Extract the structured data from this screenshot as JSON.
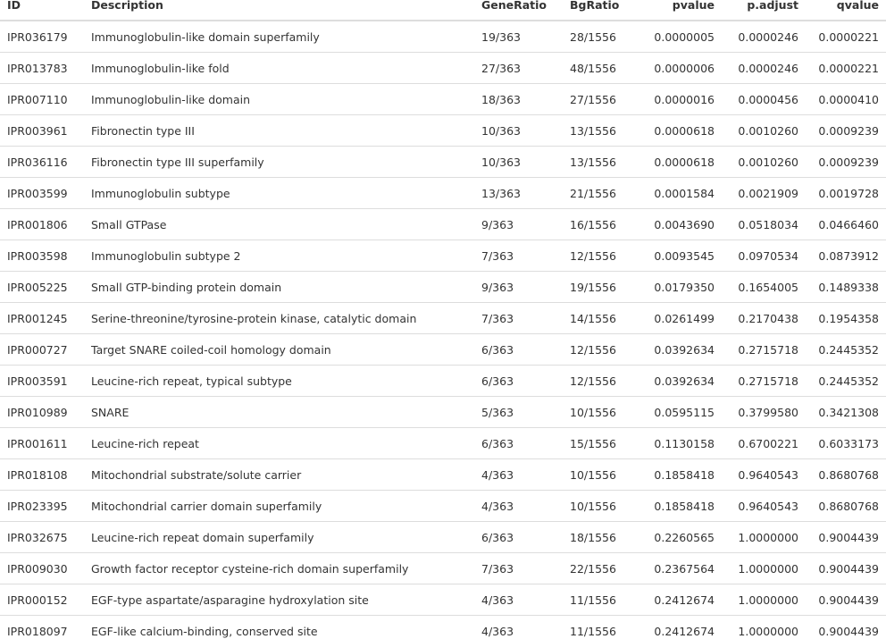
{
  "table": {
    "columns": [
      "ID",
      "Description",
      "GeneRatio",
      "BgRatio",
      "pvalue",
      "p.adjust",
      "qvalue"
    ],
    "rows": [
      [
        "IPR036179",
        "Immunoglobulin-like domain superfamily",
        "19/363",
        "28/1556",
        "0.0000005",
        "0.0000246",
        "0.0000221"
      ],
      [
        "IPR013783",
        "Immunoglobulin-like fold",
        "27/363",
        "48/1556",
        "0.0000006",
        "0.0000246",
        "0.0000221"
      ],
      [
        "IPR007110",
        "Immunoglobulin-like domain",
        "18/363",
        "27/1556",
        "0.0000016",
        "0.0000456",
        "0.0000410"
      ],
      [
        "IPR003961",
        "Fibronectin type III",
        "10/363",
        "13/1556",
        "0.0000618",
        "0.0010260",
        "0.0009239"
      ],
      [
        "IPR036116",
        "Fibronectin type III superfamily",
        "10/363",
        "13/1556",
        "0.0000618",
        "0.0010260",
        "0.0009239"
      ],
      [
        "IPR003599",
        "Immunoglobulin subtype",
        "13/363",
        "21/1556",
        "0.0001584",
        "0.0021909",
        "0.0019728"
      ],
      [
        "IPR001806",
        "Small GTPase",
        "9/363",
        "16/1556",
        "0.0043690",
        "0.0518034",
        "0.0466460"
      ],
      [
        "IPR003598",
        "Immunoglobulin subtype 2",
        "7/363",
        "12/1556",
        "0.0093545",
        "0.0970534",
        "0.0873912"
      ],
      [
        "IPR005225",
        "Small GTP-binding protein domain",
        "9/363",
        "19/1556",
        "0.0179350",
        "0.1654005",
        "0.1489338"
      ],
      [
        "IPR001245",
        "Serine-threonine/tyrosine-protein kinase, catalytic domain",
        "7/363",
        "14/1556",
        "0.0261499",
        "0.2170438",
        "0.1954358"
      ],
      [
        "IPR000727",
        "Target SNARE coiled-coil homology domain",
        "6/363",
        "12/1556",
        "0.0392634",
        "0.2715718",
        "0.2445352"
      ],
      [
        "IPR003591",
        "Leucine-rich repeat, typical subtype",
        "6/363",
        "12/1556",
        "0.0392634",
        "0.2715718",
        "0.2445352"
      ],
      [
        "IPR010989",
        "SNARE",
        "5/363",
        "10/1556",
        "0.0595115",
        "0.3799580",
        "0.3421308"
      ],
      [
        "IPR001611",
        "Leucine-rich repeat",
        "6/363",
        "15/1556",
        "0.1130158",
        "0.6700221",
        "0.6033173"
      ],
      [
        "IPR018108",
        "Mitochondrial substrate/solute carrier",
        "4/363",
        "10/1556",
        "0.1858418",
        "0.9640543",
        "0.8680768"
      ],
      [
        "IPR023395",
        "Mitochondrial carrier domain superfamily",
        "4/363",
        "10/1556",
        "0.1858418",
        "0.9640543",
        "0.8680768"
      ],
      [
        "IPR032675",
        "Leucine-rich repeat domain superfamily",
        "6/363",
        "18/1556",
        "0.2260565",
        "1.0000000",
        "0.9004439"
      ],
      [
        "IPR009030",
        "Growth factor receptor cysteine-rich domain superfamily",
        "7/363",
        "22/1556",
        "0.2367564",
        "1.0000000",
        "0.9004439"
      ],
      [
        "IPR000152",
        "EGF-type aspartate/asparagine hydroxylation site",
        "4/363",
        "11/1556",
        "0.2412674",
        "1.0000000",
        "0.9004439"
      ],
      [
        "IPR018097",
        "EGF-like calcium-binding, conserved site",
        "4/363",
        "11/1556",
        "0.2412674",
        "1.0000000",
        "0.9004439"
      ]
    ]
  }
}
